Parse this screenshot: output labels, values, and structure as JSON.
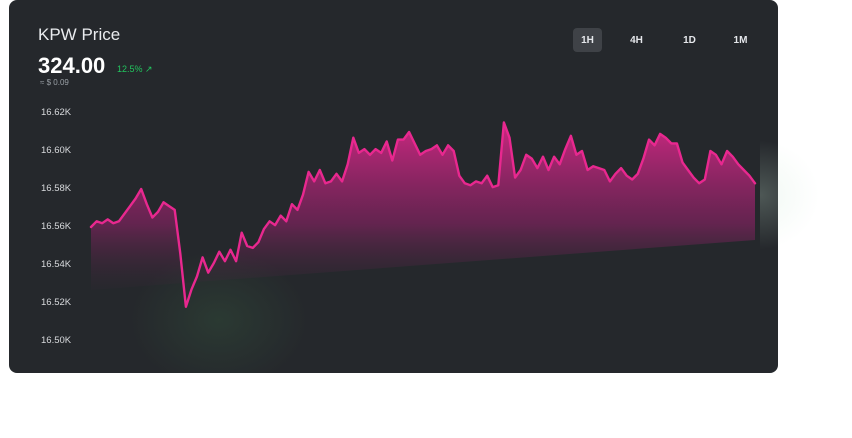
{
  "header": {
    "title": "KPW Price",
    "price": "324.00",
    "change": "12.5% ↗",
    "usd": "≈ $ 0.09"
  },
  "timeframes": [
    {
      "label": "1H",
      "active": true
    },
    {
      "label": "4H",
      "active": false
    },
    {
      "label": "1D",
      "active": false
    },
    {
      "label": "1M",
      "active": false
    }
  ],
  "colors": {
    "line": "#e8288f",
    "background": "#25282c",
    "change": "#22c55e"
  },
  "chart_data": {
    "type": "area",
    "title": "",
    "xlabel": "",
    "ylabel": "",
    "ylim": [
      16500,
      16620
    ],
    "y_ticks": [
      "16.62K",
      "16.60K",
      "16.58K",
      "16.56K",
      "16.54K",
      "16.52K",
      "16.50K"
    ],
    "y_tick_values": [
      16620,
      16600,
      16580,
      16560,
      16540,
      16520,
      16500
    ],
    "grid": false,
    "x": [
      0,
      1,
      2,
      3,
      4,
      5,
      6,
      7,
      8,
      9,
      10,
      11,
      12,
      13,
      14,
      15,
      16,
      17,
      18,
      19,
      20,
      21,
      22,
      23,
      24,
      25,
      26,
      27,
      28,
      29,
      30,
      31,
      32,
      33,
      34,
      35,
      36,
      37,
      38,
      39,
      40,
      41,
      42,
      43,
      44,
      45,
      46,
      47,
      48,
      49,
      50,
      51,
      52,
      53,
      54,
      55,
      56,
      57,
      58,
      59,
      60,
      61,
      62,
      63,
      64,
      65,
      66,
      67,
      68,
      69,
      70,
      71,
      72,
      73,
      74,
      75,
      76,
      77,
      78,
      79,
      80,
      81,
      82,
      83,
      84,
      85,
      86,
      87,
      88,
      89,
      90,
      91,
      92,
      93,
      94,
      95,
      96,
      97,
      98,
      99,
      100,
      101,
      102,
      103,
      104,
      105,
      106,
      107,
      108,
      109,
      110,
      111,
      112,
      113,
      114,
      115,
      116,
      117,
      118,
      119
    ],
    "series": [
      {
        "values": [
          16560,
          16563,
          16562,
          16564,
          16562,
          16563,
          16567,
          16571,
          16575,
          16580,
          16572,
          16565,
          16568,
          16573,
          16571,
          16569,
          16546,
          16518,
          16527,
          16534,
          16544,
          16536,
          16541,
          16547,
          16542,
          16548,
          16542,
          16557,
          16550,
          16549,
          16552,
          16559,
          16563,
          16561,
          16566,
          16563,
          16572,
          16569,
          16577,
          16589,
          16584,
          16590,
          16583,
          16584,
          16588,
          16584,
          16593,
          16607,
          16599,
          16601,
          16598,
          16601,
          16599,
          16605,
          16595,
          16606,
          16606,
          16610,
          16604,
          16598,
          16600,
          16601,
          16603,
          16598,
          16603,
          16600,
          16587,
          16583,
          16582,
          16584,
          16583,
          16587,
          16581,
          16582,
          16615,
          16607,
          16586,
          16590,
          16598,
          16596,
          16591,
          16597,
          16590,
          16597,
          16593,
          16601,
          16608,
          16598,
          16600,
          16590,
          16592,
          16591,
          16590,
          16584,
          16588,
          16591,
          16587,
          16585,
          16588,
          16596,
          16606,
          16603,
          16609,
          16607,
          16604,
          16604,
          16594,
          16590,
          16586,
          16583,
          16585,
          16600,
          16598,
          16593,
          16600,
          16597,
          16593,
          16590,
          16587,
          16583
        ]
      }
    ]
  }
}
